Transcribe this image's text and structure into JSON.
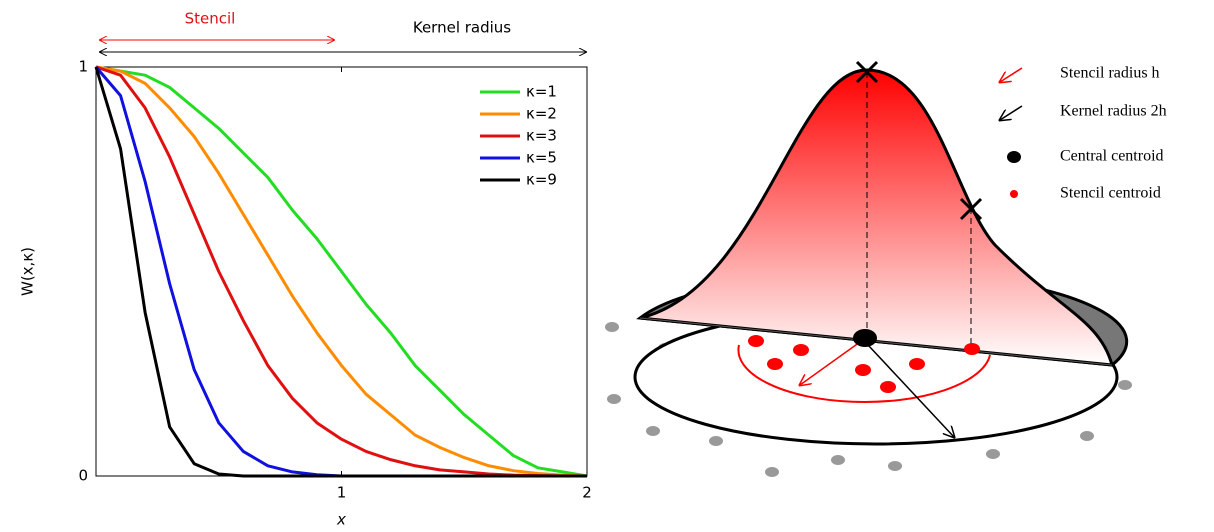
{
  "chart_data": {
    "type": "line",
    "annotations": [
      "Stencil",
      "Kernel radius"
    ],
    "xlabel": "x",
    "ylabel": "W(x,κ)",
    "x": [
      0,
      0.1,
      0.2,
      0.3,
      0.4,
      0.5,
      0.6,
      0.7,
      0.8,
      0.9,
      1,
      1.1,
      1.2,
      1.3,
      1.4,
      1.5,
      1.6,
      1.7,
      1.8,
      1.9,
      2
    ],
    "series": [
      {
        "name": "κ=1",
        "color": "#22dd22",
        "values": [
          1,
          0.99,
          0.98,
          0.95,
          0.9,
          0.85,
          0.79,
          0.73,
          0.65,
          0.58,
          0.5,
          0.42,
          0.35,
          0.27,
          0.21,
          0.15,
          0.1,
          0.05,
          0.02,
          0.01,
          0
        ]
      },
      {
        "name": "κ=2",
        "color": "#ff8c00",
        "values": [
          1,
          0.99,
          0.96,
          0.9,
          0.83,
          0.74,
          0.64,
          0.54,
          0.44,
          0.35,
          0.27,
          0.2,
          0.15,
          0.1,
          0.07,
          0.045,
          0.025,
          0.013,
          0.006,
          0.002,
          0
        ]
      },
      {
        "name": "κ=3",
        "color": "#e01010",
        "values": [
          1,
          0.98,
          0.9,
          0.78,
          0.64,
          0.5,
          0.38,
          0.27,
          0.19,
          0.13,
          0.09,
          0.06,
          0.04,
          0.025,
          0.015,
          0.01,
          0.005,
          0.002,
          0.001,
          0,
          0
        ]
      },
      {
        "name": "κ=5",
        "color": "#1010e0",
        "values": [
          1,
          0.93,
          0.72,
          0.47,
          0.26,
          0.13,
          0.06,
          0.025,
          0.01,
          0.003,
          0,
          0,
          0,
          0,
          0,
          0,
          0,
          0,
          0,
          0,
          0
        ]
      },
      {
        "name": "κ=9",
        "color": "#000000",
        "values": [
          1,
          0.8,
          0.4,
          0.12,
          0.03,
          0.005,
          0,
          0,
          0,
          0,
          0,
          0,
          0,
          0,
          0,
          0,
          0,
          0,
          0,
          0,
          0
        ]
      }
    ],
    "xlim": [
      0,
      2
    ],
    "ylim": [
      0,
      1
    ],
    "xticks": [
      1,
      2
    ],
    "yticks": [
      0,
      1
    ],
    "grid": false,
    "legend": "upper right"
  },
  "diagram": {
    "legend": [
      "Stencil radius h",
      "Kernel radius 2h",
      "Central centroid",
      "Stencil centroid"
    ]
  }
}
